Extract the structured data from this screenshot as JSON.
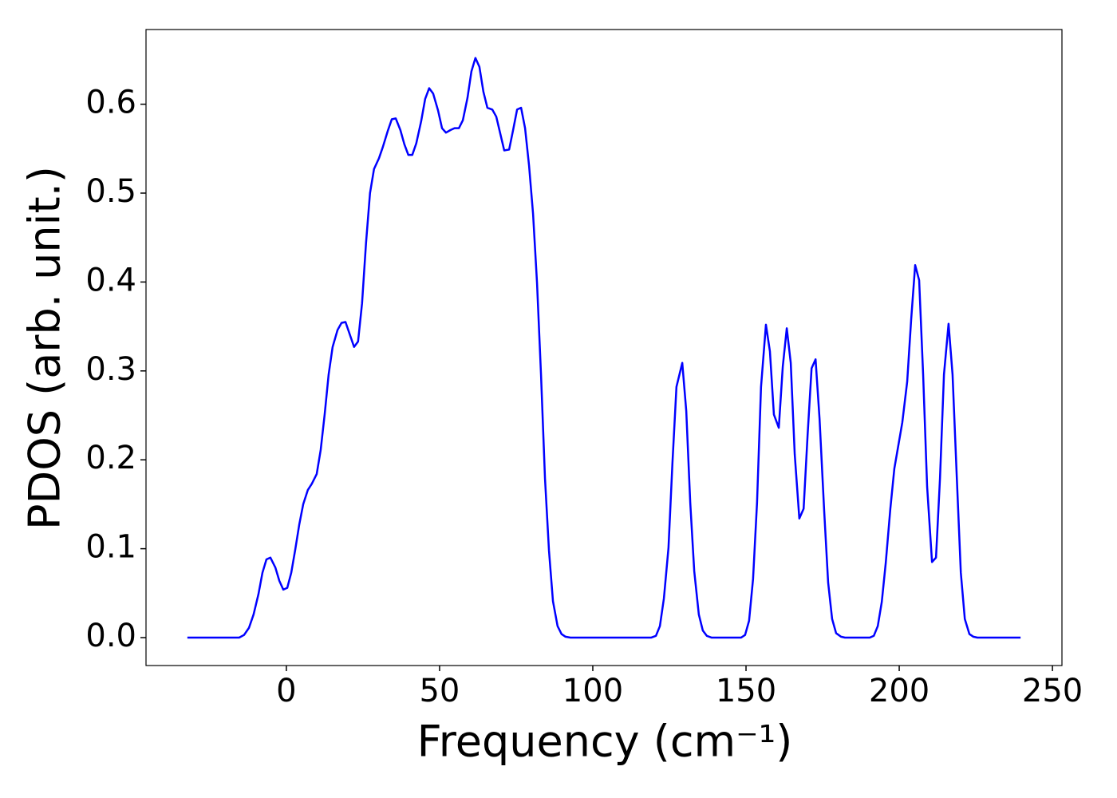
{
  "chart_data": {
    "type": "line",
    "xlabel": "Frequency (cm⁻¹)",
    "ylabel": "PDOS (arb. unit.)",
    "xlim": [
      -45.8,
      253.1
    ],
    "ylim": [
      -0.0314,
      0.684
    ],
    "xticks": [
      0,
      50,
      100,
      150,
      200,
      250
    ],
    "yticks": [
      {
        "value": 0,
        "label": "0.0"
      },
      0.1,
      0.2,
      0.3,
      0.4,
      0.5,
      0.6
    ],
    "series": [
      {
        "color": "#0000ff",
        "x": [
          -32.3,
          -15.4,
          -13.8,
          -12.2,
          -10.7,
          -9.1,
          -7.8,
          -6.5,
          -5.2,
          -3.6,
          -2.3,
          -1.0,
          0.3,
          1.6,
          2.9,
          4.2,
          5.5,
          7.0,
          8.3,
          9.9,
          11.2,
          12.5,
          13.8,
          15.1,
          16.7,
          18.0,
          19.3,
          20.6,
          22.1,
          23.4,
          24.7,
          26.0,
          27.3,
          28.6,
          30.2,
          31.5,
          33.1,
          34.4,
          35.7,
          37.2,
          38.5,
          39.8,
          41.1,
          42.4,
          44.0,
          45.3,
          46.6,
          47.9,
          49.5,
          50.8,
          52.1,
          53.6,
          54.9,
          56.3,
          57.6,
          59.1,
          60.4,
          61.7,
          63.0,
          64.3,
          65.6,
          67.2,
          68.5,
          69.8,
          71.1,
          72.7,
          74.0,
          75.3,
          76.6,
          77.9,
          79.2,
          80.5,
          81.8,
          83.1,
          84.4,
          85.7,
          87.0,
          88.5,
          89.8,
          91.1,
          92.7,
          119.0,
          120.6,
          121.9,
          123.2,
          124.7,
          126.0,
          127.3,
          129.2,
          130.5,
          131.8,
          133.1,
          134.6,
          135.9,
          137.2,
          138.8,
          148.4,
          149.7,
          151.0,
          152.3,
          153.6,
          154.9,
          156.5,
          157.8,
          159.1,
          160.7,
          162.0,
          163.3,
          164.6,
          165.9,
          167.4,
          168.8,
          170.1,
          171.4,
          172.7,
          174.0,
          175.5,
          176.8,
          178.1,
          179.4,
          181.0,
          182.3,
          190.4,
          191.7,
          193.0,
          194.3,
          195.6,
          197.1,
          198.4,
          199.7,
          201.0,
          202.6,
          203.9,
          205.2,
          206.5,
          207.8,
          209.1,
          210.7,
          212.0,
          213.3,
          214.6,
          216.1,
          217.4,
          218.8,
          220.1,
          221.4,
          222.9,
          224.2,
          225.5,
          239.6
        ],
        "values": [
          0,
          0,
          0.003,
          0.011,
          0.026,
          0.049,
          0.073,
          0.088,
          0.09,
          0.079,
          0.064,
          0.054,
          0.056,
          0.073,
          0.099,
          0.127,
          0.15,
          0.166,
          0.173,
          0.184,
          0.211,
          0.251,
          0.296,
          0.327,
          0.346,
          0.354,
          0.355,
          0.342,
          0.327,
          0.333,
          0.376,
          0.444,
          0.5,
          0.527,
          0.539,
          0.552,
          0.57,
          0.583,
          0.584,
          0.571,
          0.555,
          0.543,
          0.543,
          0.556,
          0.581,
          0.606,
          0.618,
          0.612,
          0.593,
          0.573,
          0.568,
          0.571,
          0.573,
          0.573,
          0.582,
          0.607,
          0.637,
          0.652,
          0.642,
          0.614,
          0.596,
          0.594,
          0.586,
          0.567,
          0.548,
          0.549,
          0.571,
          0.594,
          0.596,
          0.573,
          0.531,
          0.477,
          0.399,
          0.296,
          0.179,
          0.098,
          0.041,
          0.013,
          0.004,
          0.001,
          0,
          0,
          0.002,
          0.013,
          0.044,
          0.101,
          0.197,
          0.282,
          0.309,
          0.255,
          0.152,
          0.075,
          0.026,
          0.008,
          0.002,
          0,
          0,
          0.003,
          0.019,
          0.066,
          0.152,
          0.282,
          0.352,
          0.322,
          0.251,
          0.236,
          0.305,
          0.348,
          0.309,
          0.206,
          0.134,
          0.145,
          0.228,
          0.303,
          0.313,
          0.246,
          0.143,
          0.062,
          0.021,
          0.005,
          0.001,
          0,
          0,
          0.002,
          0.013,
          0.04,
          0.084,
          0.145,
          0.19,
          0.216,
          0.242,
          0.288,
          0.358,
          0.419,
          0.402,
          0.296,
          0.17,
          0.085,
          0.09,
          0.179,
          0.296,
          0.353,
          0.296,
          0.179,
          0.073,
          0.021,
          0.004,
          0.001,
          0,
          0
        ]
      }
    ]
  }
}
